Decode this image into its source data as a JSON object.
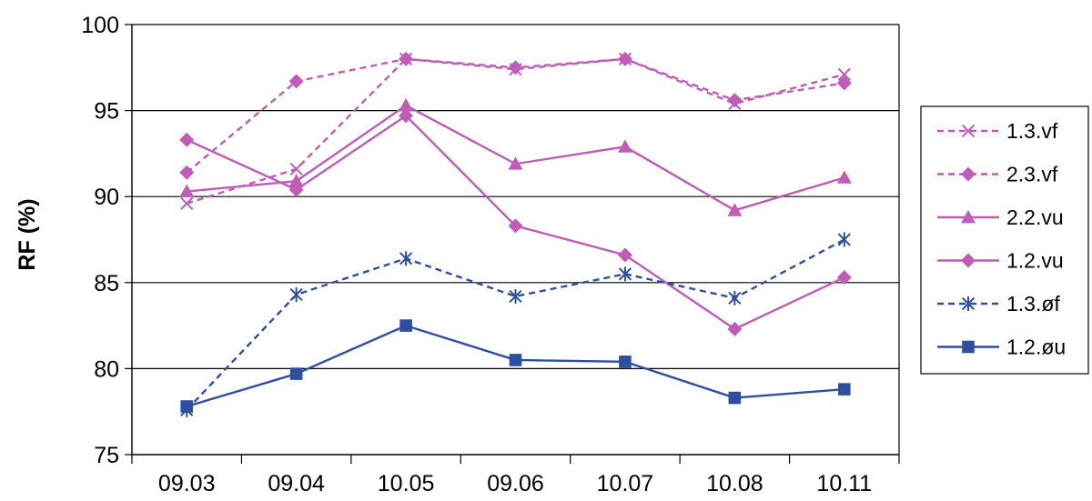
{
  "chart_data": {
    "type": "line",
    "title": "",
    "xlabel": "",
    "ylabel": "RF (%)",
    "ylim": [
      75,
      100
    ],
    "yticks": [
      75,
      80,
      85,
      90,
      95,
      100
    ],
    "grid": true,
    "legend_position": "right",
    "categories": [
      "09.03",
      "09.04",
      "10.05",
      "09.06",
      "10.07",
      "10.08",
      "10.11"
    ],
    "series": [
      {
        "name": "1.3.vf",
        "values": [
          89.6,
          91.6,
          98.0,
          97.4,
          98.0,
          95.4,
          97.1
        ],
        "color": "#c05cb8",
        "dashed": true,
        "marker": "x"
      },
      {
        "name": "2.3.vf",
        "values": [
          91.4,
          96.7,
          98.0,
          97.5,
          98.0,
          95.6,
          96.6
        ],
        "color": "#c05cb8",
        "dashed": true,
        "marker": "diamond"
      },
      {
        "name": "2.2.vu",
        "values": [
          90.3,
          90.9,
          95.3,
          91.9,
          92.9,
          89.2,
          91.1
        ],
        "color": "#c05cb8",
        "dashed": false,
        "marker": "triangle"
      },
      {
        "name": "1.2.vu",
        "values": [
          93.3,
          90.4,
          94.7,
          88.3,
          86.6,
          82.3,
          85.3
        ],
        "color": "#c05cb8",
        "dashed": false,
        "marker": "diamond"
      },
      {
        "name": "1.3.øf",
        "values": [
          77.6,
          84.3,
          86.4,
          84.2,
          85.5,
          84.1,
          87.5
        ],
        "color": "#2e4fa0",
        "dashed": true,
        "marker": "star"
      },
      {
        "name": "1.2.øu",
        "values": [
          77.8,
          79.7,
          82.5,
          80.5,
          80.4,
          78.3,
          78.8
        ],
        "color": "#2e4fa0",
        "dashed": false,
        "marker": "square"
      }
    ]
  }
}
